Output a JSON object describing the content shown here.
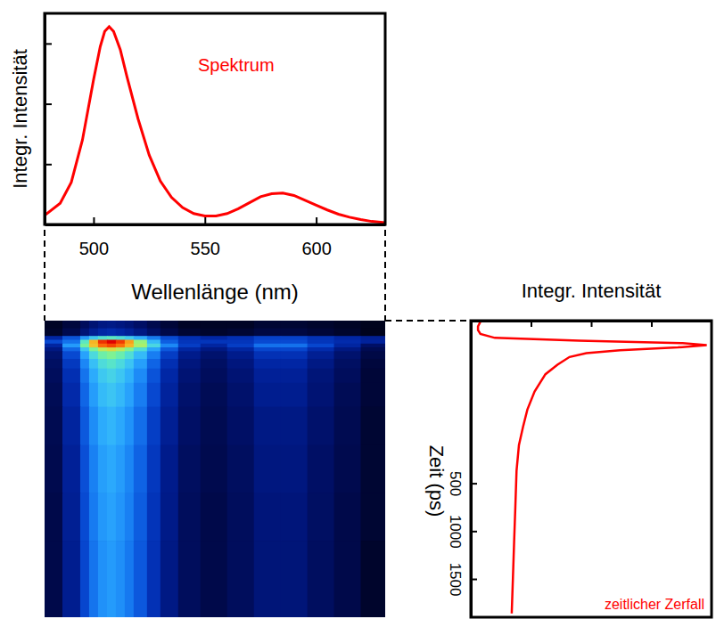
{
  "chart_data": [
    {
      "type": "line",
      "annotation": "Spektrum",
      "x_label": "Wellenlänge (nm)",
      "y_label": "Integr. Intensität",
      "x": [
        478,
        485,
        490,
        495,
        500,
        503,
        505,
        507,
        509,
        512,
        515,
        520,
        525,
        530,
        535,
        540,
        545,
        550,
        555,
        560,
        565,
        570,
        575,
        580,
        585,
        590,
        595,
        600,
        605,
        610,
        615,
        620,
        625,
        631
      ],
      "values": [
        0.15,
        0.35,
        0.7,
        1.4,
        2.4,
        2.95,
        3.2,
        3.28,
        3.2,
        2.9,
        2.45,
        1.75,
        1.15,
        0.72,
        0.45,
        0.28,
        0.18,
        0.14,
        0.14,
        0.18,
        0.26,
        0.36,
        0.46,
        0.51,
        0.52,
        0.48,
        0.4,
        0.32,
        0.24,
        0.17,
        0.12,
        0.08,
        0.05,
        0.03
      ],
      "color": "#ff0000",
      "xlim": [
        478,
        631
      ],
      "xticks": [
        500,
        550,
        600
      ],
      "ylim": [
        0,
        3.5
      ],
      "yticks": [
        1,
        2,
        3
      ],
      "tick_labels": "x"
    },
    {
      "type": "heatmap",
      "wavelength_bins": [
        478,
        486,
        494,
        498,
        502,
        506,
        510,
        514,
        518,
        524,
        530,
        538,
        548,
        560,
        572,
        584,
        596,
        608,
        620,
        631
      ],
      "time_bins": [
        -1200,
        -1120,
        -1040,
        -1000,
        -960,
        -920,
        -880,
        -800,
        -700,
        -550,
        -300,
        100,
        600,
        1100,
        1900
      ],
      "cells": [
        [
          0.2,
          0.6,
          1.4,
          2.2,
          2.8,
          3,
          2.7,
          2.3,
          1.7,
          1,
          0.5,
          0.2,
          0.2,
          0.2,
          0.4,
          0.4,
          0.3,
          0.2,
          0.1
        ],
        [
          0.3,
          1,
          2.3,
          3.6,
          4.6,
          5,
          4.5,
          3.8,
          2.8,
          1.7,
          0.9,
          0.4,
          0.3,
          0.4,
          0.7,
          0.7,
          0.5,
          0.3,
          0.1
        ],
        [
          4.5,
          9,
          16.5,
          24.6,
          30.6,
          33,
          30,
          25.5,
          19.5,
          12.9,
          8.1,
          5.4,
          4.5,
          5.4,
          7.2,
          7.2,
          5.7,
          4.5,
          3.6
        ],
        [
          8,
          12,
          33,
          64,
          91,
          103,
          88,
          68,
          44,
          22,
          10,
          6,
          6,
          6,
          8,
          8,
          6,
          5,
          4
        ],
        [
          4.3,
          17,
          38.3,
          61.2,
          78.2,
          85,
          76.5,
          63.8,
          46.8,
          28.1,
          14.5,
          6.8,
          4.3,
          6.8,
          11.9,
          11.9,
          7.7,
          4.3,
          1.7
        ],
        [
          2.8,
          11,
          24.8,
          39.6,
          50.6,
          55,
          49.5,
          41.3,
          30.3,
          18.2,
          9.4,
          4.4,
          2.8,
          4.4,
          7.7,
          7.7,
          5,
          2.8,
          1.1
        ],
        [
          2,
          8,
          18,
          28.8,
          36.8,
          40,
          36,
          30,
          22,
          13.2,
          6.8,
          3.2,
          2,
          3.2,
          5.6,
          5.6,
          3.6,
          2,
          0.8
        ],
        [
          1.6,
          6.4,
          14.4,
          23,
          29.4,
          32,
          28.8,
          24,
          17.6,
          10.6,
          5.4,
          2.6,
          1.6,
          2.6,
          4.5,
          4.5,
          2.9,
          1.6,
          0.6
        ],
        [
          1.4,
          5.4,
          12.2,
          19.4,
          24.8,
          27,
          24.3,
          20.3,
          14.9,
          8.9,
          4.6,
          2.2,
          1.4,
          2.2,
          3.8,
          3.8,
          2.4,
          1.4,
          0.5
        ],
        [
          1.2,
          4.8,
          10.8,
          17.3,
          22.1,
          24,
          21.6,
          18,
          13.2,
          7.9,
          4.1,
          1.9,
          1.2,
          1.9,
          3.4,
          3.4,
          2.2,
          1.2,
          0.5
        ],
        [
          1.1,
          4.2,
          9.5,
          15.1,
          19.3,
          21,
          18.9,
          15.8,
          11.6,
          6.9,
          3.6,
          1.7,
          1.1,
          1.7,
          2.9,
          2.9,
          1.9,
          1.1,
          0.4
        ],
        [
          1,
          3.8,
          8.6,
          13.7,
          17.5,
          19,
          17.1,
          14.3,
          10.5,
          6.3,
          3.2,
          1.5,
          1,
          1.5,
          2.7,
          2.7,
          1.7,
          1,
          0.4
        ],
        [
          0.9,
          3.6,
          8.1,
          13,
          16.6,
          18,
          16.2,
          13.5,
          9.9,
          5.9,
          3.1,
          1.4,
          0.9,
          1.4,
          2.5,
          2.5,
          1.6,
          0.9,
          0.4
        ],
        [
          0.9,
          3.4,
          7.7,
          12.2,
          15.6,
          17,
          15.3,
          12.8,
          9.4,
          5.6,
          2.9,
          1.4,
          0.9,
          1.4,
          2.4,
          2.4,
          1.5,
          0.9,
          0.3
        ]
      ],
      "xlim": [
        478,
        631
      ],
      "ylim": [
        -1200,
        1900
      ],
      "tick_labels": false
    },
    {
      "type": "line",
      "orientation": "horizontal",
      "annotation": "zeitlicher Zerfall",
      "x_label": "Zeit (ps)",
      "y_label": "Integr. Intensität",
      "x": [
        -1190,
        -1140,
        -1100,
        -1060,
        -1020,
        -990,
        -965,
        -945,
        -920,
        -890,
        -860,
        -820,
        -740,
        -640,
        -460,
        -270,
        -90,
        100,
        370,
        750,
        1110,
        1490,
        1860
      ],
      "values": [
        0.04,
        0.03,
        0.03,
        0.04,
        0.1,
        0.45,
        0.88,
        0.98,
        0.86,
        0.62,
        0.48,
        0.41,
        0.36,
        0.31,
        0.265,
        0.235,
        0.217,
        0.2,
        0.19,
        0.185,
        0.18,
        0.175,
        0.17
      ],
      "color": "#ff0000",
      "xlim": [
        -1200,
        1900
      ],
      "xticks": [
        500,
        1000,
        1500
      ],
      "ylim": [
        0,
        1
      ],
      "yticks": [
        0.25,
        0.5,
        0.75
      ],
      "tick_labels": "x"
    }
  ]
}
